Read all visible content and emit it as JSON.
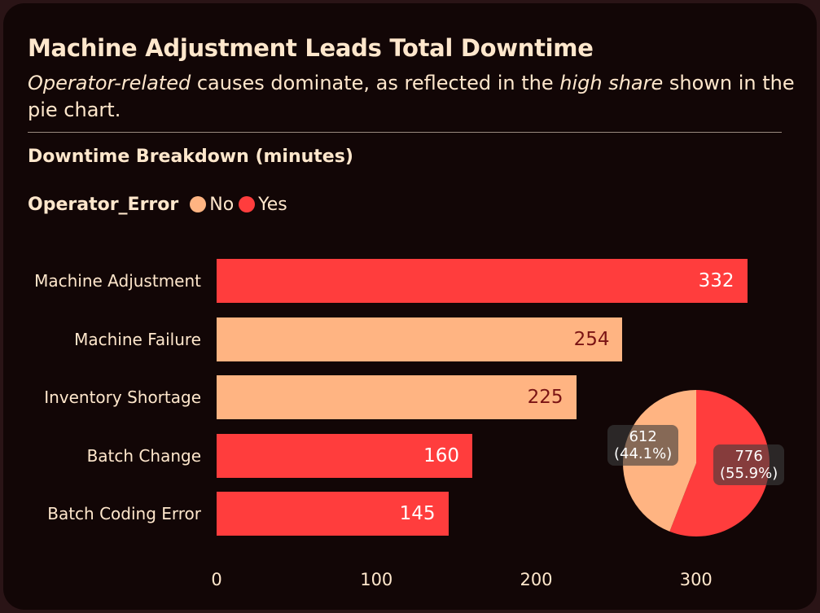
{
  "header": {
    "title": "Machine Adjustment Leads Total Downtime",
    "subtitle_em1": "Operator-related",
    "subtitle_mid": " causes dominate, as reflected in the ",
    "subtitle_em2": "high share",
    "subtitle_end": " shown in the pie chart.",
    "section_title": "Downtime Breakdown (minutes)"
  },
  "legend": {
    "title": "Operator_Error",
    "items": [
      {
        "label": "No",
        "color": "#ffb482"
      },
      {
        "label": "Yes",
        "color": "#ff3d3d"
      }
    ]
  },
  "chart_data": [
    {
      "type": "bar",
      "orientation": "horizontal",
      "categories": [
        "Machine Adjustment",
        "Machine Failure",
        "Inventory Shortage",
        "Batch Change",
        "Batch Coding Error"
      ],
      "values": [
        332,
        254,
        225,
        160,
        145
      ],
      "operator_error": [
        "Yes",
        "No",
        "No",
        "Yes",
        "Yes"
      ],
      "value_labels": [
        "332",
        "254",
        "225",
        "160",
        "145"
      ],
      "xlim": [
        0,
        350
      ],
      "xticks": [
        "0",
        "100",
        "200",
        "300"
      ],
      "colors": {
        "No": "#ffb482",
        "Yes": "#ff3d3d"
      },
      "label_colors": {
        "No": "#7a1414",
        "Yes": "#ffffff"
      },
      "grid": false
    },
    {
      "type": "pie",
      "labels": [
        "No",
        "Yes"
      ],
      "values": [
        612,
        776
      ],
      "value_labels": [
        "612",
        "776"
      ],
      "percent_labels": [
        "(44.1%)",
        "(55.9%)"
      ],
      "colors": [
        "#ffb482",
        "#ff3d3d"
      ]
    }
  ]
}
